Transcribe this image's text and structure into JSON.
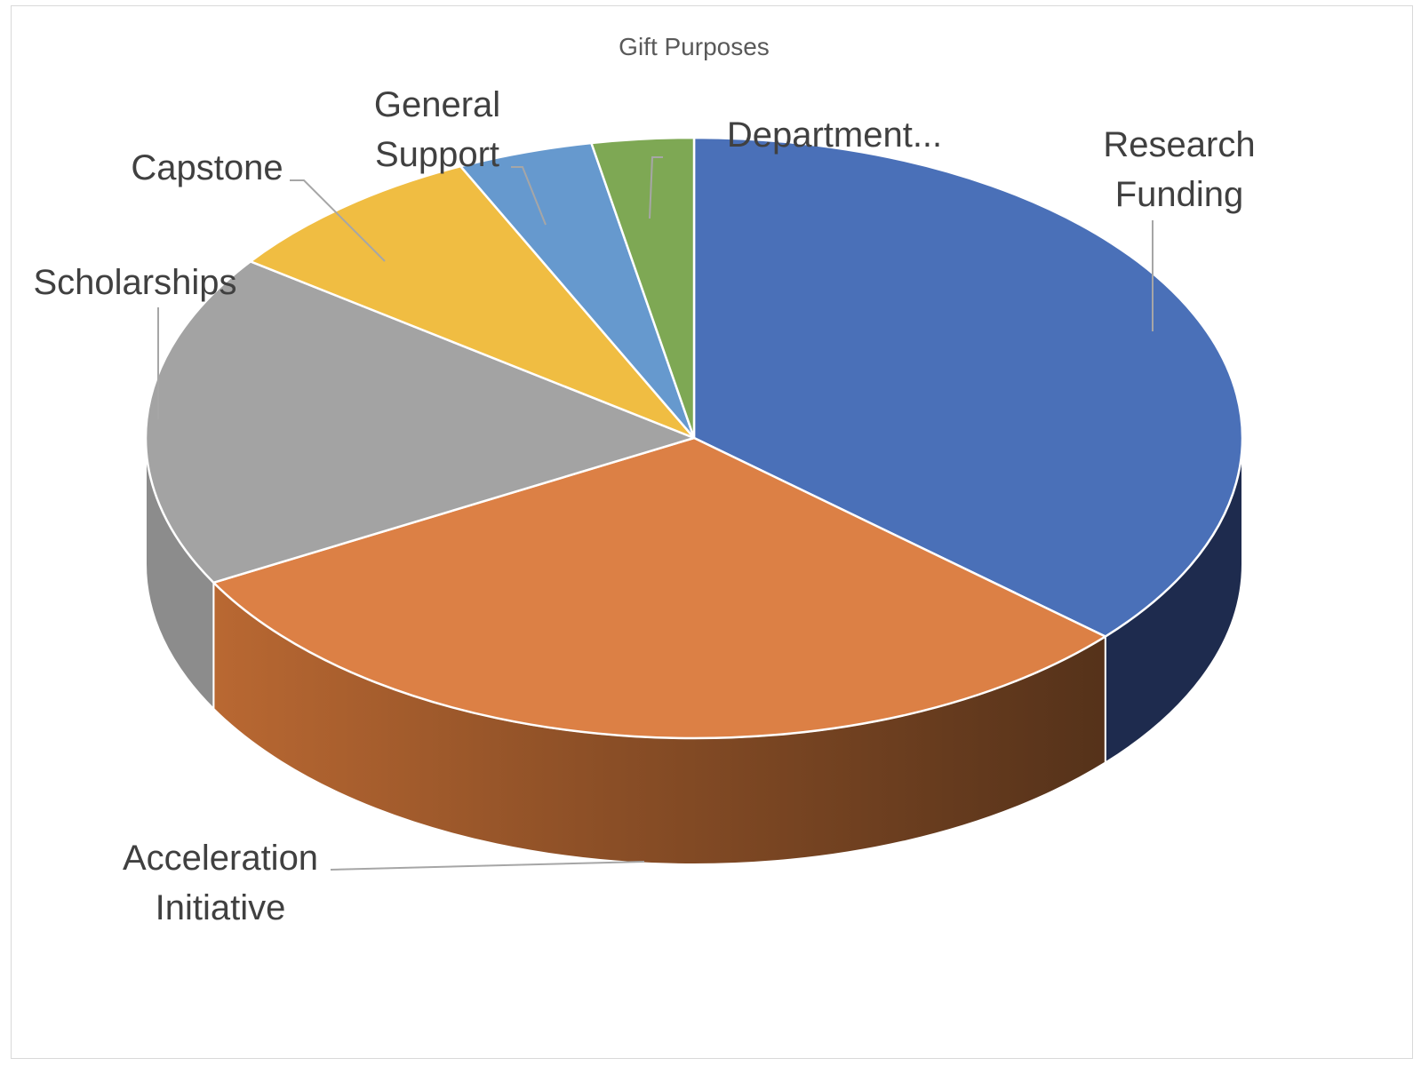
{
  "chart_data": {
    "type": "pie",
    "style": "3d",
    "title": "Gift Purposes",
    "slices": [
      {
        "label": "Research Funding",
        "label_lines": [
          "Research",
          "Funding"
        ],
        "value": 36.5,
        "color": "#4a70b8",
        "side_color": "#1e2b4e"
      },
      {
        "label": "Acceleration Initiative",
        "label_lines": [
          "Acceleration",
          "Initiative"
        ],
        "value": 30.5,
        "color": "#dc8045",
        "side_color": "#b5622f"
      },
      {
        "label": "Scholarships",
        "label_lines": [
          "Scholarships"
        ],
        "value": 18,
        "color": "#a3a3a3",
        "side_color": "#8c8c8c"
      },
      {
        "label": "Capstone",
        "label_lines": [
          "Capstone"
        ],
        "value": 8,
        "color": "#f0bd42",
        "side_color": "#b38a2c"
      },
      {
        "label": "General Support",
        "label_lines": [
          "General",
          "Support"
        ],
        "value": 4,
        "color": "#6699ce",
        "side_color": "#4d74a0"
      },
      {
        "label": "Department...",
        "label_lines": [
          "Department..."
        ],
        "value": 3,
        "color": "#7ea854",
        "side_color": "#5c7d3c"
      }
    ],
    "legend": "none",
    "data_labels": "category-name-outside"
  }
}
